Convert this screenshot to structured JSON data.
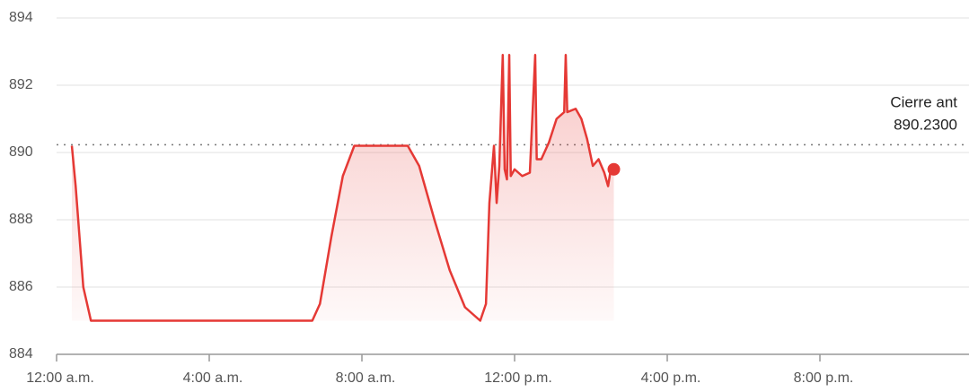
{
  "chart_data": {
    "type": "line",
    "color": "#e53935",
    "xlim": [
      0,
      24
    ],
    "ylim": [
      884,
      894
    ],
    "yticks": [
      884,
      886,
      888,
      890,
      892,
      894
    ],
    "xticks": [
      {
        "value": 0,
        "label": "12:00 a.m."
      },
      {
        "value": 4,
        "label": "4:00 a.m."
      },
      {
        "value": 8,
        "label": "8:00 a.m."
      },
      {
        "value": 12,
        "label": "12:00 p.m."
      },
      {
        "value": 16,
        "label": "4:00 p.m."
      },
      {
        "value": 20,
        "label": "8:00 p.m."
      }
    ],
    "grid": true,
    "reference_line": {
      "name": "Cierre ant",
      "value": 890.23,
      "label": "890.2300"
    },
    "x": [
      0.4,
      0.5,
      0.7,
      0.9,
      6.7,
      6.9,
      7.2,
      7.5,
      7.8,
      9.2,
      9.5,
      9.9,
      10.3,
      10.7,
      11.1,
      11.25,
      11.34,
      11.46,
      11.53,
      11.6,
      11.69,
      11.74,
      11.8,
      11.86,
      11.9,
      12.0,
      12.2,
      12.4,
      12.54,
      12.58,
      12.7,
      12.9,
      13.1,
      13.3,
      13.34,
      13.38,
      13.6,
      13.75,
      13.9,
      14.05,
      14.2,
      14.35,
      14.45,
      14.52,
      14.6
    ],
    "values": [
      890.2,
      889,
      886,
      885,
      885,
      885.5,
      887.5,
      889.3,
      890.2,
      890.2,
      889.6,
      888,
      886.5,
      885.4,
      885,
      885.5,
      888.5,
      890.2,
      888.5,
      889.6,
      892.9,
      889.5,
      889.2,
      892.9,
      889.3,
      889.5,
      889.3,
      889.4,
      892.9,
      889.8,
      889.8,
      890.3,
      891.0,
      891.2,
      892.9,
      891.2,
      891.3,
      891.0,
      890.4,
      889.6,
      889.8,
      889.4,
      889.0,
      889.5,
      889.5
    ]
  }
}
